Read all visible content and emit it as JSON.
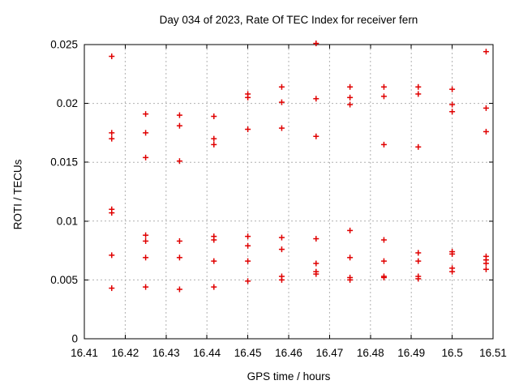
{
  "page": {
    "background": "#ffffff",
    "kind": "gnuplot scatter plot"
  },
  "chart_data": {
    "type": "scatter",
    "title": "Day 034 of 2023, Rate Of TEC Index for receiver fern",
    "xlabel": "GPS time / hours",
    "ylabel": "ROTI / TECUs",
    "xlim": [
      16.41,
      16.51
    ],
    "ylim": [
      0,
      0.025
    ],
    "grid": true,
    "legend_position": "none",
    "xticks": {
      "values": [
        16.41,
        16.42,
        16.43,
        16.44,
        16.45,
        16.46,
        16.47,
        16.48,
        16.49,
        16.5,
        16.51
      ],
      "labels": [
        "16.41",
        "16.42",
        "16.43",
        "16.44",
        "16.45",
        "16.46",
        "16.47",
        "16.48",
        "16.49",
        "16.5",
        "16.51"
      ]
    },
    "yticks": {
      "values": [
        0,
        0.005,
        0.01,
        0.015,
        0.02,
        0.025
      ],
      "labels": [
        "0",
        "0.005",
        "0.01",
        "0.015",
        "0.02",
        "0.025"
      ]
    },
    "marker": {
      "shape": "plus",
      "color": "#e00000",
      "size": 7,
      "stroke_width": 1.5
    },
    "grid_color": "#b0b0b0",
    "axis_color": "#000000",
    "series": [
      {
        "name": "ROTI",
        "points": [
          [
            16.4167,
            0.024
          ],
          [
            16.4167,
            0.0175
          ],
          [
            16.4167,
            0.017
          ],
          [
            16.4167,
            0.011
          ],
          [
            16.4167,
            0.0107
          ],
          [
            16.4167,
            0.0071
          ],
          [
            16.4167,
            0.0043
          ],
          [
            16.425,
            0.0191
          ],
          [
            16.425,
            0.0175
          ],
          [
            16.425,
            0.0154
          ],
          [
            16.425,
            0.0088
          ],
          [
            16.425,
            0.0083
          ],
          [
            16.425,
            0.0069
          ],
          [
            16.425,
            0.0044
          ],
          [
            16.4333,
            0.019
          ],
          [
            16.4333,
            0.0181
          ],
          [
            16.4333,
            0.0151
          ],
          [
            16.4333,
            0.0083
          ],
          [
            16.4333,
            0.0069
          ],
          [
            16.4333,
            0.0042
          ],
          [
            16.4417,
            0.0189
          ],
          [
            16.4417,
            0.017
          ],
          [
            16.4417,
            0.0165
          ],
          [
            16.4417,
            0.0087
          ],
          [
            16.4417,
            0.0084
          ],
          [
            16.4417,
            0.0066
          ],
          [
            16.4417,
            0.0044
          ],
          [
            16.45,
            0.0208
          ],
          [
            16.45,
            0.0205
          ],
          [
            16.45,
            0.0178
          ],
          [
            16.45,
            0.0087
          ],
          [
            16.45,
            0.0079
          ],
          [
            16.45,
            0.0066
          ],
          [
            16.45,
            0.0049
          ],
          [
            16.4583,
            0.0214
          ],
          [
            16.4583,
            0.0201
          ],
          [
            16.4583,
            0.0179
          ],
          [
            16.4583,
            0.0086
          ],
          [
            16.4583,
            0.0076
          ],
          [
            16.4583,
            0.0053
          ],
          [
            16.4583,
            0.005
          ],
          [
            16.4667,
            0.0251
          ],
          [
            16.4667,
            0.0204
          ],
          [
            16.4667,
            0.0172
          ],
          [
            16.4667,
            0.0085
          ],
          [
            16.4667,
            0.0064
          ],
          [
            16.4667,
            0.0057
          ],
          [
            16.4667,
            0.0055
          ],
          [
            16.475,
            0.0214
          ],
          [
            16.475,
            0.0205
          ],
          [
            16.475,
            0.0199
          ],
          [
            16.475,
            0.0092
          ],
          [
            16.475,
            0.0069
          ],
          [
            16.475,
            0.0052
          ],
          [
            16.475,
            0.005
          ],
          [
            16.4833,
            0.0214
          ],
          [
            16.4833,
            0.0206
          ],
          [
            16.4833,
            0.0165
          ],
          [
            16.4833,
            0.0084
          ],
          [
            16.4833,
            0.0066
          ],
          [
            16.4833,
            0.0053
          ],
          [
            16.4833,
            0.0052
          ],
          [
            16.4917,
            0.0214
          ],
          [
            16.4917,
            0.0208
          ],
          [
            16.4917,
            0.0163
          ],
          [
            16.4917,
            0.0073
          ],
          [
            16.4917,
            0.0066
          ],
          [
            16.4917,
            0.0053
          ],
          [
            16.4917,
            0.0051
          ],
          [
            16.5,
            0.0212
          ],
          [
            16.5,
            0.0199
          ],
          [
            16.5,
            0.0193
          ],
          [
            16.5,
            0.0074
          ],
          [
            16.5,
            0.0072
          ],
          [
            16.5,
            0.006
          ],
          [
            16.5,
            0.0057
          ],
          [
            16.5083,
            0.0244
          ],
          [
            16.5083,
            0.0196
          ],
          [
            16.5083,
            0.0176
          ],
          [
            16.5083,
            0.007
          ],
          [
            16.5083,
            0.0067
          ],
          [
            16.5083,
            0.0064
          ],
          [
            16.5083,
            0.0059
          ]
        ]
      }
    ]
  }
}
